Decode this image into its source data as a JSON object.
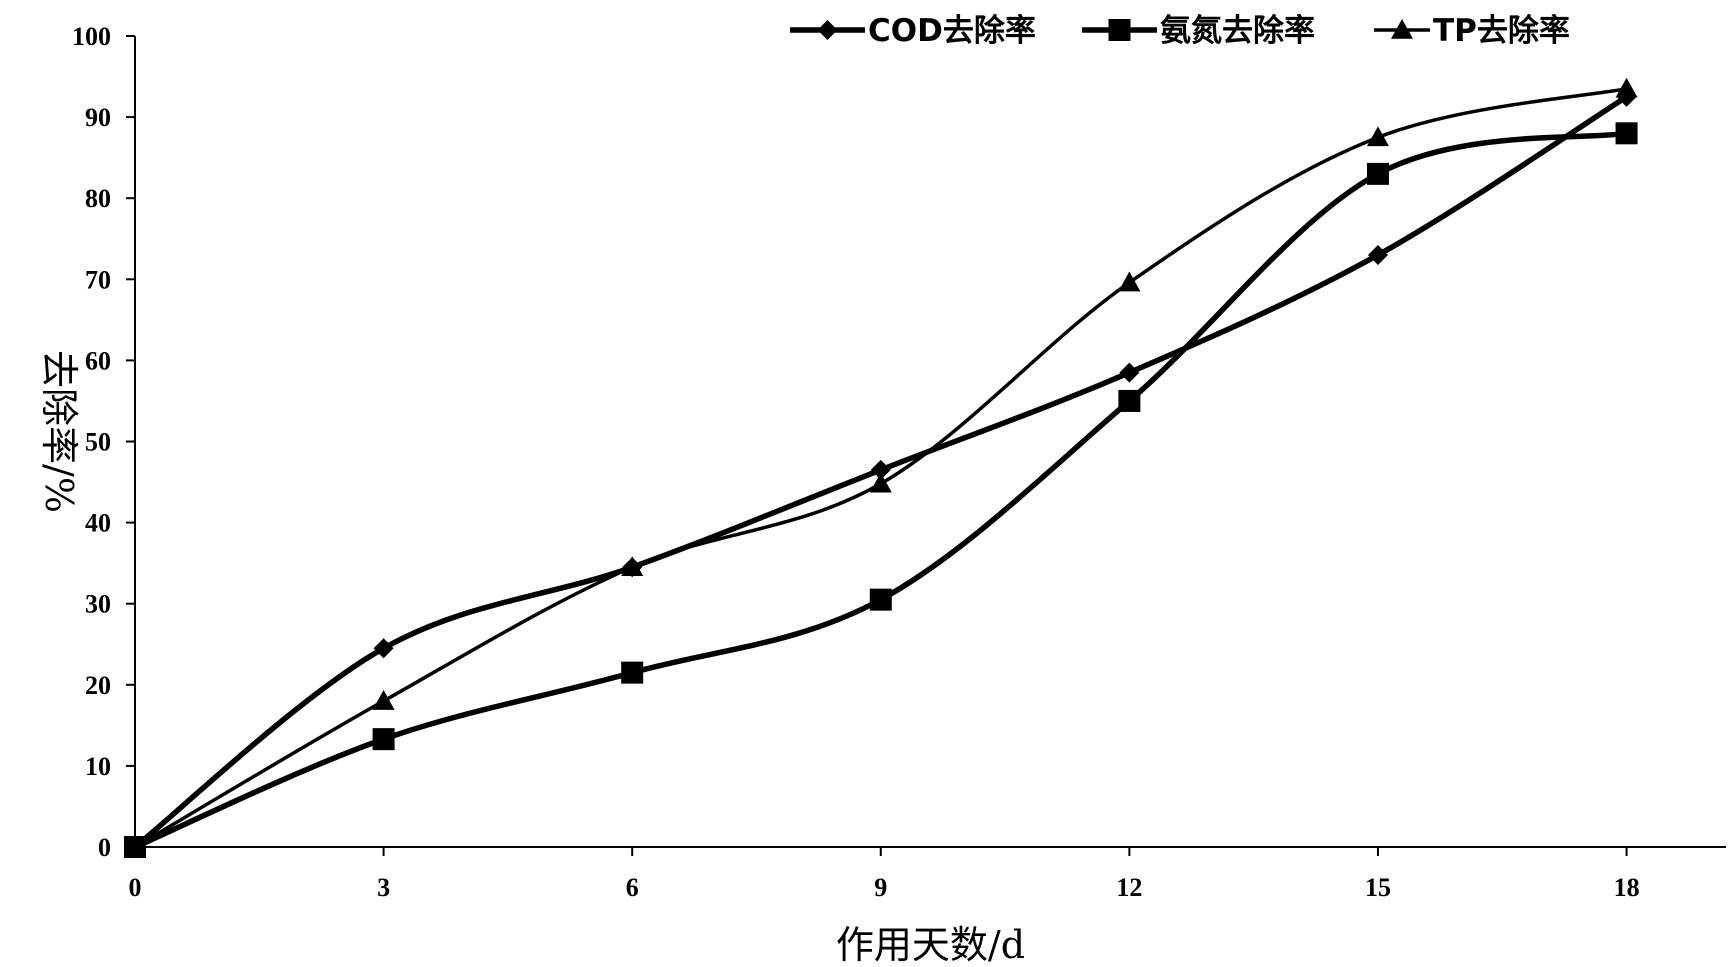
{
  "chart_data": {
    "type": "line",
    "xlabel": "作用天数/d",
    "ylabel": "去除率/%",
    "x": [
      0,
      3,
      6,
      9,
      12,
      15,
      18
    ],
    "xticks": [
      "0",
      "3",
      "6",
      "9",
      "12",
      "15",
      "18"
    ],
    "yticks": [
      "0",
      "10",
      "20",
      "30",
      "40",
      "50",
      "60",
      "70",
      "80",
      "90",
      "100"
    ],
    "xlim": [
      0,
      19.2
    ],
    "ylim": [
      0,
      100
    ],
    "grid": false,
    "legend_position": "top-right",
    "series": [
      {
        "name": "COD去除率",
        "marker": "diamond",
        "stroke_width": 5.5,
        "values": [
          0,
          24.5,
          34.5,
          46.5,
          58.5,
          73,
          92.5
        ]
      },
      {
        "name": "氨氮去除率",
        "marker": "square",
        "stroke_width": 5.5,
        "values": [
          0,
          13.3,
          21.5,
          30.5,
          55,
          83,
          88
        ]
      },
      {
        "name": "TP去除率",
        "marker": "triangle",
        "stroke_width": 3.5,
        "values": [
          0,
          18,
          34.5,
          44.8,
          69.6,
          87.5,
          93.5
        ]
      }
    ]
  }
}
